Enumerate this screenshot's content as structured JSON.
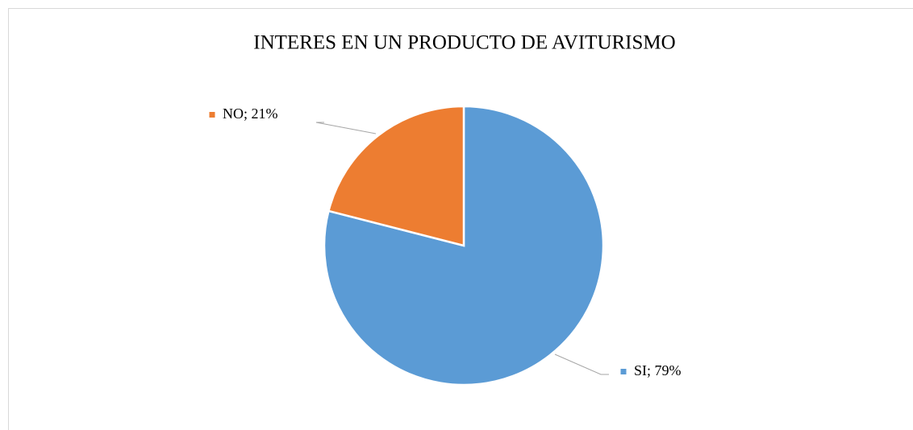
{
  "chart_data": {
    "type": "pie",
    "title": "INTERES EN UN PRODUCTO DE AVITURISMO",
    "categories": [
      "SI",
      "NO"
    ],
    "values": [
      79,
      21
    ],
    "value_labels": [
      "SI; 79%",
      "NO; 21%"
    ],
    "colors": [
      "#5b9bd5",
      "#ed7d31"
    ]
  }
}
